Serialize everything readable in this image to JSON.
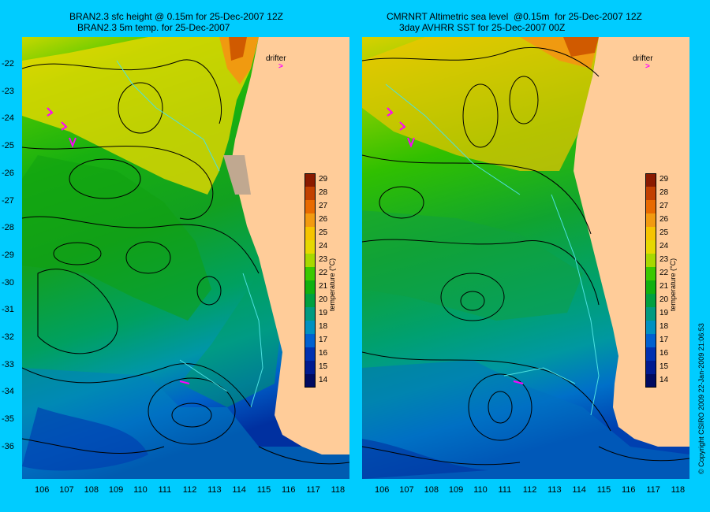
{
  "left_panel": {
    "title_line1": "BRAN2.3 sfc height @ 0.15m for 25-Dec-2007 12Z",
    "title_line2": "BRAN2.3 5m temp. for 25-Dec-2007",
    "drifter_label": "drifter"
  },
  "right_panel": {
    "title_line1": "CMRNRT Altimetric sea level  @0.15m  for 25-Dec-2007 12Z",
    "title_line2": "3day AVHRR SST for 25-Dec-2007 00Z",
    "drifter_label": "drifter"
  },
  "latitudes": [
    "-22",
    "-23",
    "-24",
    "-25",
    "-26",
    "-27",
    "-28",
    "-29",
    "-30",
    "-31",
    "-32",
    "-33",
    "-34",
    "-35",
    "-36"
  ],
  "longitudes": [
    "106",
    "107",
    "108",
    "109",
    "110",
    "111",
    "112",
    "113",
    "114",
    "115",
    "116",
    "117",
    "118"
  ],
  "colorbar": {
    "title": "temperature (°C)",
    "ticks": [
      "29",
      "28",
      "27",
      "26",
      "25",
      "24",
      "23",
      "22",
      "21",
      "20",
      "19",
      "18",
      "17",
      "16",
      "15",
      "14"
    ],
    "colors": [
      "#8a1a00",
      "#c24000",
      "#e86a00",
      "#f29a10",
      "#f6c400",
      "#e6d800",
      "#a8d800",
      "#3cc800",
      "#10b010",
      "#00a040",
      "#009a80",
      "#0090c0",
      "#0060d0",
      "#0030b0",
      "#001a90",
      "#000a60"
    ]
  },
  "copyright": "© Copyright CSIRO 2009   22-Jan-2009 21:06:53"
}
